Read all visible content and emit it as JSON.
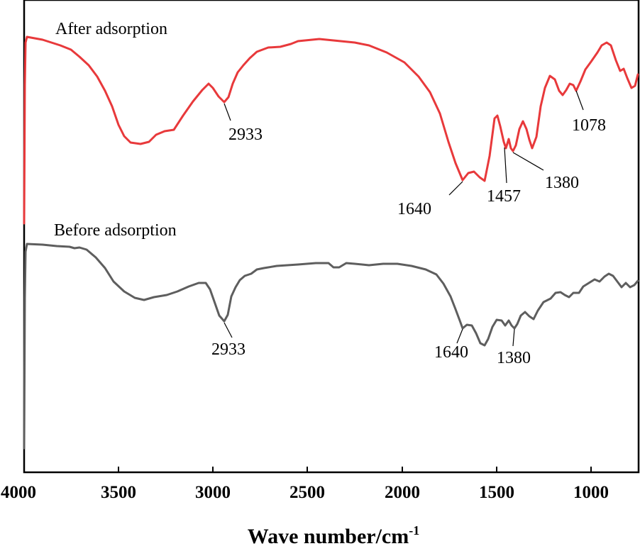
{
  "chart_data": {
    "type": "line",
    "title": "",
    "xlabel": "Wave number/cm",
    "xlabel_superscript": "-1",
    "ylabel": "",
    "xlim": [
      4000,
      750
    ],
    "xticks": [
      4000,
      3500,
      3000,
      2500,
      2000,
      1500,
      1000
    ],
    "grid": false,
    "series": [
      {
        "name": "After adsorption",
        "color": "#e8393b",
        "peaks": [
          {
            "label": "2933",
            "x": 2933
          },
          {
            "label": "1640",
            "x": 1640
          },
          {
            "label": "1457",
            "x": 1457
          },
          {
            "label": "1380",
            "x": 1380
          },
          {
            "label": "1078",
            "x": 1078
          }
        ]
      },
      {
        "name": "Before adsorption",
        "color": "#5e5e5e",
        "peaks": [
          {
            "label": "2933",
            "x": 2933
          },
          {
            "label": "1640",
            "x": 1640
          },
          {
            "label": "1380",
            "x": 1380
          }
        ]
      }
    ]
  }
}
